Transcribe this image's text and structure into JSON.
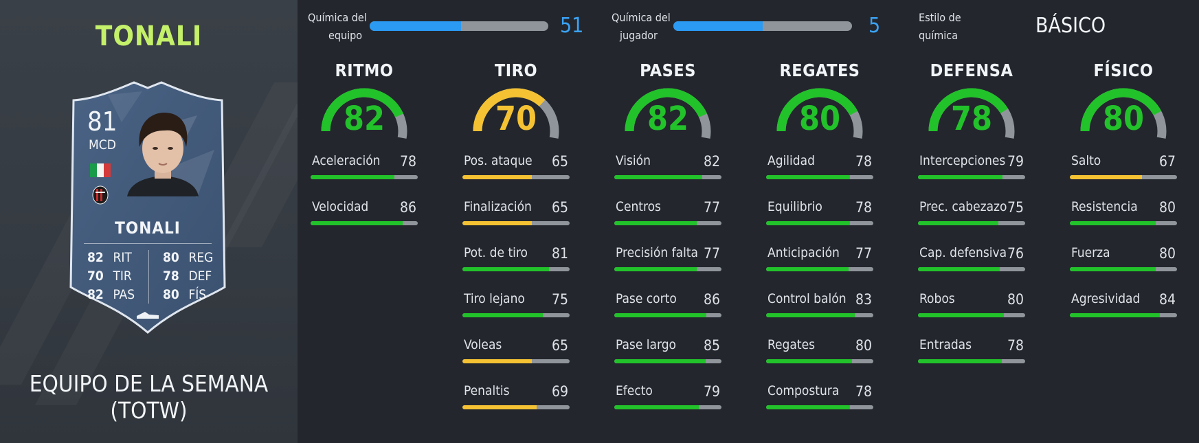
{
  "player": {
    "name_title": "TONALI",
    "card": {
      "rating": "81",
      "position": "MCD",
      "name": "TONALI",
      "stats_left": [
        {
          "value": "82",
          "label": "RIT"
        },
        {
          "value": "70",
          "label": "TIR"
        },
        {
          "value": "82",
          "label": "PAS"
        }
      ],
      "stats_right": [
        {
          "value": "80",
          "label": "REG"
        },
        {
          "value": "78",
          "label": "DEF"
        },
        {
          "value": "80",
          "label": "FÍS"
        }
      ]
    },
    "promo": "EQUIPO DE LA SEMANA (TOTW)"
  },
  "chemistry": {
    "team": {
      "label_line1": "Química del",
      "label_line2": "equipo",
      "value": "51",
      "fill_fraction": 0.51
    },
    "player": {
      "label_line1": "Química del",
      "label_line2": "jugador",
      "value": "5",
      "fill_fraction": 0.5
    },
    "style": {
      "label_line1": "Estilo de",
      "label_line2": "química",
      "value": "BÁSICO"
    }
  },
  "colors": {
    "high": "#22c22a",
    "medium": "#f4c233",
    "track": "#8f959b",
    "chemistry": "#2b9af3",
    "title": "#c4f06a"
  },
  "categories": [
    {
      "name": "RITMO",
      "value": "82",
      "level": "high",
      "stats": [
        {
          "label": "Aceleración",
          "value": "78",
          "level": "high"
        },
        {
          "label": "Velocidad",
          "value": "86",
          "level": "high"
        }
      ]
    },
    {
      "name": "TIRO",
      "value": "70",
      "level": "medium",
      "stats": [
        {
          "label": "Pos. ataque",
          "value": "65",
          "level": "medium"
        },
        {
          "label": "Finalización",
          "value": "65",
          "level": "medium"
        },
        {
          "label": "Pot. de tiro",
          "value": "81",
          "level": "high"
        },
        {
          "label": "Tiro lejano",
          "value": "75",
          "level": "high"
        },
        {
          "label": "Voleas",
          "value": "65",
          "level": "medium"
        },
        {
          "label": "Penaltis",
          "value": "69",
          "level": "medium"
        }
      ]
    },
    {
      "name": "PASES",
      "value": "82",
      "level": "high",
      "stats": [
        {
          "label": "Visión",
          "value": "82",
          "level": "high"
        },
        {
          "label": "Centros",
          "value": "77",
          "level": "high"
        },
        {
          "label": "Precisión falta",
          "value": "77",
          "level": "high"
        },
        {
          "label": "Pase corto",
          "value": "86",
          "level": "high"
        },
        {
          "label": "Pase largo",
          "value": "85",
          "level": "high"
        },
        {
          "label": "Efecto",
          "value": "79",
          "level": "high"
        }
      ]
    },
    {
      "name": "REGATES",
      "value": "80",
      "level": "high",
      "stats": [
        {
          "label": "Agilidad",
          "value": "78",
          "level": "high"
        },
        {
          "label": "Equilibrio",
          "value": "78",
          "level": "high"
        },
        {
          "label": "Anticipación",
          "value": "77",
          "level": "high"
        },
        {
          "label": "Control balón",
          "value": "83",
          "level": "high"
        },
        {
          "label": "Regates",
          "value": "80",
          "level": "high"
        },
        {
          "label": "Compostura",
          "value": "78",
          "level": "high"
        }
      ]
    },
    {
      "name": "DEFENSA",
      "value": "78",
      "level": "high",
      "stats": [
        {
          "label": "Intercepciones",
          "value": "79",
          "level": "high"
        },
        {
          "label": "Prec. cabezazo",
          "value": "75",
          "level": "high"
        },
        {
          "label": "Cap. defensiva",
          "value": "76",
          "level": "high"
        },
        {
          "label": "Robos",
          "value": "80",
          "level": "high"
        },
        {
          "label": "Entradas",
          "value": "78",
          "level": "high"
        }
      ]
    },
    {
      "name": "FÍSICO",
      "value": "80",
      "level": "high",
      "stats": [
        {
          "label": "Salto",
          "value": "67",
          "level": "medium"
        },
        {
          "label": "Resistencia",
          "value": "80",
          "level": "high"
        },
        {
          "label": "Fuerza",
          "value": "80",
          "level": "high"
        },
        {
          "label": "Agresividad",
          "value": "84",
          "level": "high"
        }
      ]
    }
  ]
}
